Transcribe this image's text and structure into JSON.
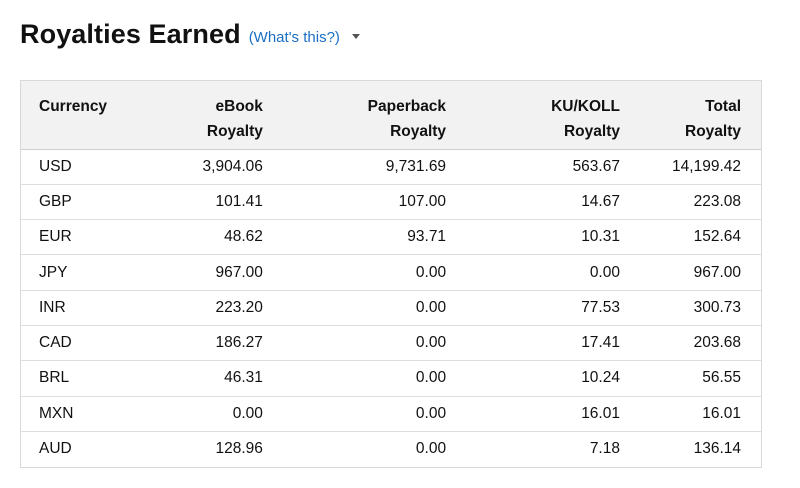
{
  "header": {
    "title": "Royalties Earned",
    "help_link": "(What's this?)"
  },
  "table": {
    "columns": [
      {
        "line1": "Currency",
        "line2": ""
      },
      {
        "line1": "eBook",
        "line2": "Royalty"
      },
      {
        "line1": "Paperback",
        "line2": "Royalty"
      },
      {
        "line1": "KU/KOLL",
        "line2": "Royalty"
      },
      {
        "line1": "Total",
        "line2": "Royalty"
      }
    ],
    "rows": [
      {
        "currency": "USD",
        "ebook": "3,904.06",
        "paperback": "9,731.69",
        "ku": "563.67",
        "total": "14,199.42"
      },
      {
        "currency": "GBP",
        "ebook": "101.41",
        "paperback": "107.00",
        "ku": "14.67",
        "total": "223.08"
      },
      {
        "currency": "EUR",
        "ebook": "48.62",
        "paperback": "93.71",
        "ku": "10.31",
        "total": "152.64"
      },
      {
        "currency": "JPY",
        "ebook": "967.00",
        "paperback": "0.00",
        "ku": "0.00",
        "total": "967.00"
      },
      {
        "currency": "INR",
        "ebook": "223.20",
        "paperback": "0.00",
        "ku": "77.53",
        "total": "300.73"
      },
      {
        "currency": "CAD",
        "ebook": "186.27",
        "paperback": "0.00",
        "ku": "17.41",
        "total": "203.68"
      },
      {
        "currency": "BRL",
        "ebook": "46.31",
        "paperback": "0.00",
        "ku": "10.24",
        "total": "56.55"
      },
      {
        "currency": "MXN",
        "ebook": "0.00",
        "paperback": "0.00",
        "ku": "16.01",
        "total": "16.01"
      },
      {
        "currency": "AUD",
        "ebook": "128.96",
        "paperback": "0.00",
        "ku": "7.18",
        "total": "136.14"
      }
    ]
  },
  "colors": {
    "link": "#1a6fc4",
    "header_bg": "#f2f2f2",
    "border": "#d9d9d9"
  },
  "icons": {
    "dropdown": "caret-down-icon"
  }
}
